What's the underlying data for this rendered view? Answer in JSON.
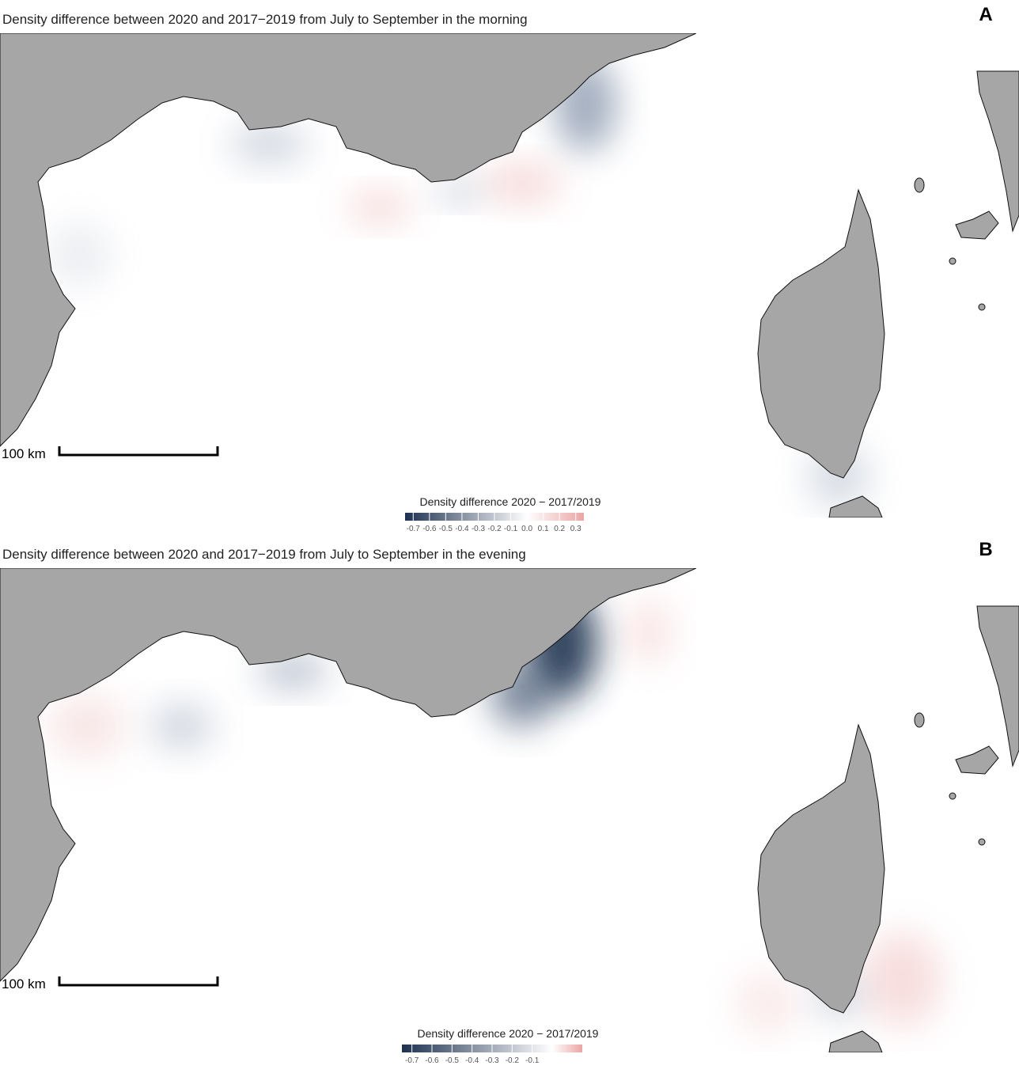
{
  "panels": [
    {
      "letter": "A",
      "title": "Density difference between 2020 and 2017−2019 from July to September in the morning",
      "scale_label": "100 km",
      "legend": {
        "title": "Density difference 2020 − 2017/2019",
        "limits": [
          -0.75,
          0.35
        ],
        "colors": [
          "#1d3150",
          "#ffffff",
          "#eba5a5"
        ],
        "ticks": [
          -0.7,
          -0.6,
          -0.5,
          -0.4,
          -0.3,
          -0.2,
          -0.1,
          {
            "value": 0,
            "label": "0.0"
          },
          0.1,
          0.2,
          0.3
        ]
      }
    },
    {
      "letter": "B",
      "title": "Density difference between 2020 and 2017−2019 from July to September in the evening",
      "scale_label": "100 km",
      "legend": {
        "title": "Density difference 2020 − 2017/2019",
        "limits": [
          -0.75,
          0.15
        ],
        "colors": [
          "#1d3150",
          "#ffffff",
          "#eba5a5"
        ],
        "ticks": [
          -0.7,
          -0.6,
          -0.5,
          -0.4,
          -0.3,
          -0.2,
          -0.1
        ]
      }
    }
  ]
}
